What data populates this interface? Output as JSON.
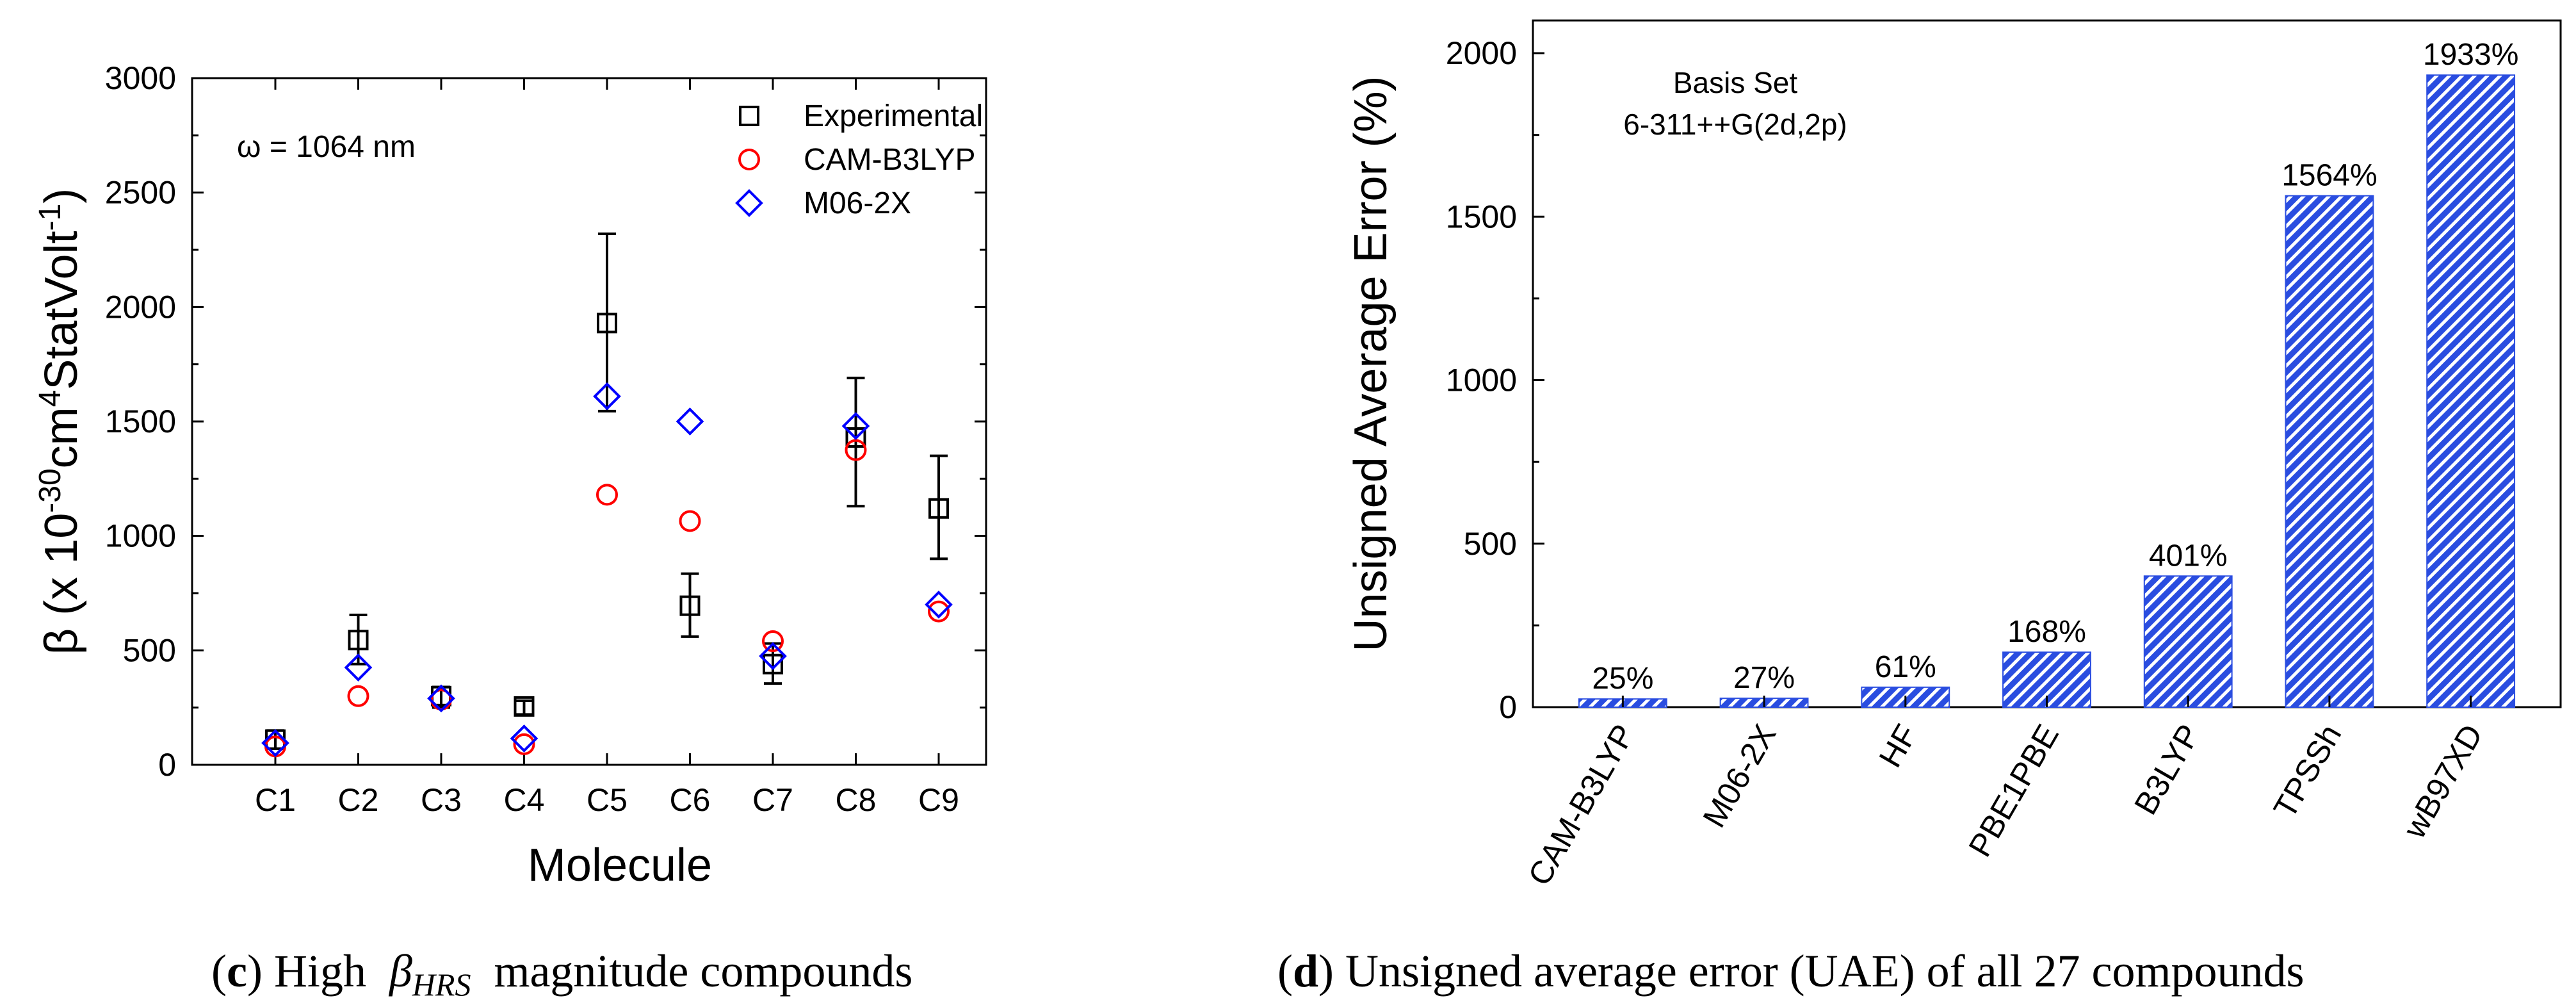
{
  "chart_data": [
    {
      "type": "scatter",
      "xlabel": "Molecule",
      "ylabel_main": "β (x 10",
      "ylabel_exp1": "-30",
      "ylabel_mid": "cm",
      "ylabel_exp2": "4",
      "ylabel_mid2": "StatVolt",
      "ylabel_exp3": "-1",
      "ylabel_end": ")",
      "ylim": [
        0,
        3000
      ],
      "yticks": [
        "0",
        "500",
        "1000",
        "1500",
        "2000",
        "2500",
        "3000"
      ],
      "yticks_values": [
        0,
        500,
        1000,
        1500,
        2000,
        2500,
        3000
      ],
      "categories": [
        "C1",
        "C2",
        "C3",
        "C4",
        "C5",
        "C6",
        "C7",
        "C8",
        "C9"
      ],
      "annotation": "ω = 1064 nm",
      "legend_position": "top-right",
      "series": [
        {
          "name": "Experimental",
          "marker": "square",
          "color": "#000000",
          "values": [
            110,
            545,
            300,
            255,
            1930,
            695,
            440,
            1430,
            1120
          ],
          "err_high": [
            150,
            655,
            340,
            280,
            2320,
            835,
            530,
            1690,
            1350
          ],
          "err_low": [
            70,
            440,
            250,
            220,
            1545,
            560,
            355,
            1130,
            900
          ]
        },
        {
          "name": "CAM-B3LYP",
          "marker": "circle",
          "color": "#ff0000",
          "values": [
            80,
            300,
            285,
            90,
            1180,
            1065,
            540,
            1375,
            670
          ]
        },
        {
          "name": "M06-2X",
          "marker": "diamond",
          "color": "#0000ff",
          "values": [
            95,
            425,
            290,
            115,
            1610,
            1500,
            475,
            1480,
            700
          ]
        }
      ],
      "caption_label": "c",
      "caption_open": "(",
      "caption_close": ")",
      "caption_text1": "High",
      "caption_beta": "β",
      "caption_sub": "HRS",
      "caption_text2": "magnitude compounds"
    },
    {
      "type": "bar",
      "ylabel": "Unsigned Average Error (%)",
      "ylim": [
        0,
        2100
      ],
      "yticks": [
        "0",
        "500",
        "1000",
        "1500",
        "2000"
      ],
      "yticks_values": [
        0,
        500,
        1000,
        1500,
        2000
      ],
      "categories": [
        "CAM-B3LYP",
        "M06-2X",
        "HF",
        "PBE1PBE",
        "B3LYP",
        "TPSSh",
        "wB97XD"
      ],
      "values": [
        25,
        27,
        61,
        168,
        401,
        1564,
        1933
      ],
      "value_labels": [
        "25%",
        "27%",
        "61%",
        "168%",
        "401%",
        "1564%",
        "1933%"
      ],
      "bar_color": "#2a4de0",
      "annotation_line1": "Basis Set",
      "annotation_line2": "6-311++G(2d,2p)",
      "caption_label": "d",
      "caption_open": "(",
      "caption_close": ")",
      "caption_text": "Unsigned average error (UAE) of all 27 compounds"
    }
  ]
}
